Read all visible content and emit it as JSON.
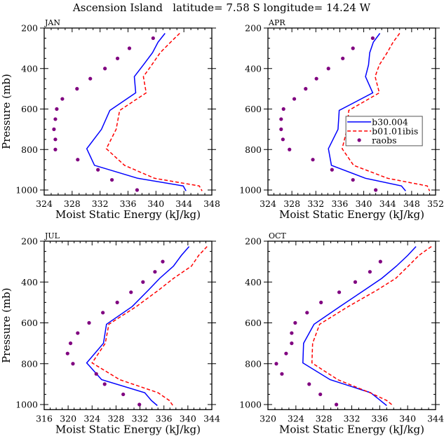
{
  "figure": {
    "title": "Ascension Island   latitude= 7.58 S longitude= 14.24 W"
  },
  "chart_data": [
    {
      "type": "line",
      "panel": "JAN",
      "title": "JAN",
      "xlabel": "Moist Static Energy (kJ/kg)",
      "ylabel": "Pressure (mb)",
      "xlim": [
        324,
        348
      ],
      "ylim": [
        1025,
        200
      ],
      "y_inverted": true,
      "xticks": [
        324,
        328,
        332,
        336,
        340,
        344,
        348
      ],
      "yticks": [
        200,
        400,
        600,
        800,
        1000
      ],
      "legend": false,
      "series": [
        {
          "name": "b30.004",
          "style": "solid",
          "color": "#0000ff",
          "pressure": [
            226,
            270,
            322,
            382,
            440,
            520,
            607,
            700,
            796,
            878,
            942,
            980,
            1005
          ],
          "values": [
            341.3,
            340.3,
            339.5,
            338.2,
            336.9,
            337.1,
            333.4,
            332.2,
            330.1,
            331.2,
            337.4,
            343.9,
            344.3
          ]
        },
        {
          "name": "b01.01ibis",
          "style": "dashed",
          "color": "#ff0000",
          "pressure": [
            226,
            270,
            322,
            382,
            440,
            520,
            607,
            700,
            796,
            878,
            942,
            980,
            1005
          ],
          "values": [
            343.4,
            342.1,
            340.6,
            339.4,
            338.2,
            338.6,
            334.8,
            334.3,
            332.9,
            335.5,
            339.8,
            346.2,
            346.6
          ]
        },
        {
          "name": "raobs",
          "style": "markers",
          "color": "#800080",
          "pressure": [
            250,
            300,
            350,
            400,
            450,
            500,
            550,
            600,
            650,
            700,
            750,
            800,
            850,
            900,
            950,
            1000
          ],
          "values": [
            339.6,
            336.2,
            334.5,
            332.7,
            330.6,
            328.7,
            326.6,
            325.8,
            325.6,
            325.4,
            325.6,
            325.6,
            328.8,
            331.7,
            333.7,
            337.3
          ]
        }
      ]
    },
    {
      "type": "line",
      "panel": "APR",
      "title": "APR",
      "xlabel": "Moist Static Energy (kJ/kg)",
      "ylabel": "",
      "xlim": [
        324,
        352
      ],
      "ylim": [
        1025,
        200
      ],
      "y_inverted": true,
      "xticks": [
        324,
        328,
        332,
        336,
        340,
        344,
        348,
        352
      ],
      "yticks": [
        200,
        400,
        600,
        800,
        1000
      ],
      "legend": true,
      "legend_position": "center-right",
      "series": [
        {
          "name": "b30.004",
          "style": "solid",
          "color": "#0000ff",
          "pressure": [
            226,
            270,
            322,
            382,
            440,
            520,
            607,
            700,
            796,
            878,
            942,
            980,
            1005
          ],
          "values": [
            342.7,
            341.6,
            341.0,
            340.8,
            340.3,
            341.5,
            335.9,
            335.7,
            334.1,
            334.6,
            340.3,
            346.3,
            347.0
          ]
        },
        {
          "name": "b01.01ibis",
          "style": "dashed",
          "color": "#ff0000",
          "pressure": [
            226,
            270,
            322,
            382,
            440,
            520,
            607,
            700,
            796,
            878,
            942,
            980,
            1005
          ],
          "values": [
            346.0,
            344.9,
            343.9,
            342.6,
            341.9,
            342.6,
            337.5,
            337.2,
            336.4,
            338.3,
            344.0,
            350.6,
            351.0
          ]
        },
        {
          "name": "raobs",
          "style": "markers",
          "color": "#800080",
          "pressure": [
            250,
            300,
            350,
            400,
            450,
            500,
            550,
            600,
            650,
            700,
            750,
            800,
            850,
            900,
            950,
            1000
          ],
          "values": [
            341.5,
            338.2,
            336.5,
            334.1,
            332.1,
            330.3,
            328.4,
            326.6,
            326.2,
            326.2,
            326.5,
            327.6,
            331.5,
            334.7,
            338.2,
            342.0
          ]
        }
      ]
    },
    {
      "type": "line",
      "panel": "JUL",
      "title": "JUL",
      "xlabel": "Moist Static Energy (kJ/kg)",
      "ylabel": "Pressure (mb)",
      "xlim": [
        316,
        344
      ],
      "ylim": [
        1025,
        200
      ],
      "y_inverted": true,
      "xticks": [
        316,
        320,
        324,
        328,
        332,
        336,
        340,
        344
      ],
      "yticks": [
        200,
        400,
        600,
        800,
        1000
      ],
      "legend": false,
      "series": [
        {
          "name": "b30.004",
          "style": "solid",
          "color": "#0000ff",
          "pressure": [
            226,
            270,
            322,
            382,
            440,
            520,
            607,
            700,
            796,
            878,
            942,
            980,
            1005
          ],
          "values": [
            340.2,
            338.9,
            337.6,
            335.3,
            333.4,
            330.7,
            326.4,
            325.9,
            323.1,
            325.6,
            332.8,
            333.9,
            334.9
          ]
        },
        {
          "name": "b01.01ibis",
          "style": "dashed",
          "color": "#ff0000",
          "pressure": [
            226,
            270,
            322,
            382,
            440,
            520,
            607,
            700,
            796,
            878,
            942,
            980,
            1005
          ],
          "values": [
            343.2,
            341.8,
            340.6,
            337.6,
            335.1,
            331.4,
            326.8,
            326.2,
            324.0,
            328.6,
            335.0,
            336.9,
            337.5
          ]
        },
        {
          "name": "raobs",
          "style": "markers",
          "color": "#800080",
          "pressure": [
            300,
            350,
            400,
            450,
            500,
            550,
            600,
            650,
            700,
            750,
            800,
            850,
            900,
            950,
            1000
          ],
          "values": [
            335.8,
            334.5,
            332.5,
            330.5,
            328.2,
            325.8,
            323.5,
            321.6,
            320.4,
            319.9,
            320.8,
            324.7,
            326.1,
            329.2,
            331.9
          ]
        }
      ]
    },
    {
      "type": "line",
      "panel": "OCT",
      "title": "OCT",
      "xlabel": "Moist Static Energy (kJ/kg)",
      "ylabel": "",
      "xlim": [
        320,
        344
      ],
      "ylim": [
        1025,
        200
      ],
      "y_inverted": true,
      "xticks": [
        320,
        324,
        328,
        332,
        336,
        340,
        344
      ],
      "yticks": [
        200,
        400,
        600,
        800,
        1000
      ],
      "legend": false,
      "series": [
        {
          "name": "b30.004",
          "style": "solid",
          "color": "#0000ff",
          "pressure": [
            226,
            270,
            322,
            382,
            440,
            520,
            607,
            700,
            796,
            878,
            942,
            980,
            1005
          ],
          "values": [
            341.2,
            340.0,
            338.4,
            336.3,
            333.8,
            330.3,
            326.6,
            325.1,
            325.0,
            328.9,
            334.7,
            336.1,
            337.0
          ]
        },
        {
          "name": "b01.01ibis",
          "style": "dashed",
          "color": "#ff0000",
          "pressure": [
            226,
            270,
            322,
            382,
            440,
            520,
            607,
            700,
            796,
            878,
            942,
            980,
            1005
          ],
          "values": [
            343.4,
            341.6,
            340.1,
            338.3,
            335.6,
            331.5,
            327.4,
            326.4,
            326.3,
            330.0,
            334.6,
            337.0,
            337.9
          ]
        },
        {
          "name": "raobs",
          "style": "markers",
          "color": "#800080",
          "pressure": [
            300,
            350,
            400,
            450,
            500,
            550,
            600,
            650,
            700,
            750,
            800,
            850,
            900,
            950,
            1000
          ],
          "values": [
            336.1,
            334.6,
            332.5,
            330.2,
            327.6,
            325.6,
            323.9,
            323.4,
            323.4,
            322.6,
            321.2,
            322.0,
            325.9,
            327.5,
            329.8
          ]
        }
      ]
    }
  ],
  "legend": {
    "entries": [
      {
        "label": "b30.004",
        "style": "solid",
        "color": "#0000ff"
      },
      {
        "label": "b01.01ibis",
        "style": "dashed",
        "color": "#ff0000"
      },
      {
        "label": "raobs",
        "style": "markers",
        "color": "#800080"
      }
    ]
  }
}
